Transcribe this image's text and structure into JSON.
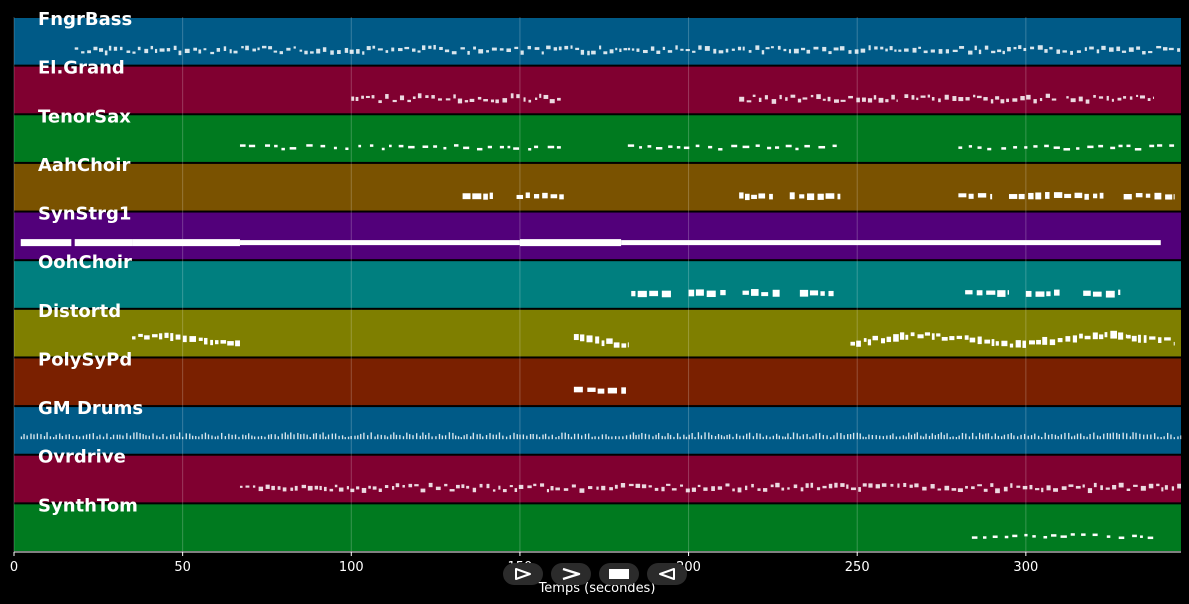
{
  "chart_data": {
    "type": "piano-roll",
    "xlabel": "Temps (secondes)",
    "xlim": [
      0,
      346
    ],
    "xticks": [
      0,
      50,
      100,
      150,
      200,
      250,
      300
    ],
    "grid": true,
    "tracks": [
      {
        "name": "FngrBass",
        "color": "#005a87",
        "style": "dense",
        "segments": [
          [
            18,
            165
          ],
          [
            165,
            182
          ],
          [
            182,
            346
          ]
        ]
      },
      {
        "name": "El.Grand",
        "color": "#800030",
        "style": "dense",
        "segments": [
          [
            100,
            163
          ],
          [
            215,
            262
          ],
          [
            264,
            295
          ],
          [
            296,
            310
          ],
          [
            312,
            338
          ]
        ]
      },
      {
        "name": "TenorSax",
        "color": "#007a1f",
        "style": "sparse",
        "segments": [
          [
            67,
            163
          ],
          [
            182,
            245
          ],
          [
            280,
            346
          ]
        ]
      },
      {
        "name": "AahChoir",
        "color": "#7a5200",
        "style": "blocks",
        "segments": [
          [
            133,
            142
          ],
          [
            149,
            163
          ],
          [
            215,
            225
          ],
          [
            230,
            245
          ],
          [
            280,
            290
          ],
          [
            295,
            323
          ],
          [
            329,
            344
          ]
        ]
      },
      {
        "name": "SynStrg1",
        "color": "#52007a",
        "style": "sustain",
        "segments": [
          [
            2,
            17
          ],
          [
            18,
            35
          ],
          [
            35,
            67
          ],
          [
            67,
            150
          ],
          [
            150,
            180
          ],
          [
            180,
            340
          ]
        ]
      },
      {
        "name": "OohChoir",
        "color": "#007f7f",
        "style": "blocks",
        "segments": [
          [
            183,
            195
          ],
          [
            200,
            211
          ],
          [
            216,
            227
          ],
          [
            233,
            243
          ],
          [
            282,
            295
          ],
          [
            300,
            310
          ],
          [
            317,
            328
          ]
        ]
      },
      {
        "name": "Distortd",
        "color": "#7f7f00",
        "style": "wavy",
        "segments": [
          [
            35,
            67
          ],
          [
            166,
            182
          ],
          [
            248,
            330
          ],
          [
            330,
            344
          ]
        ]
      },
      {
        "name": "PolySyPd",
        "color": "#7a2000",
        "style": "blocks",
        "segments": [
          [
            166,
            182
          ]
        ]
      },
      {
        "name": "GM Drums",
        "color": "#005a87",
        "style": "drums",
        "segments": [
          [
            2,
            346
          ]
        ]
      },
      {
        "name": "Ovrdrive",
        "color": "#800030",
        "style": "dense",
        "segments": [
          [
            67,
            346
          ]
        ]
      },
      {
        "name": "SynthTom",
        "color": "#007a1f",
        "style": "sparse",
        "segments": [
          [
            284,
            340
          ]
        ]
      }
    ]
  },
  "transport": {
    "buttons": [
      {
        "name": "play-icon",
        "color": "#ffffff"
      },
      {
        "name": "forward-icon",
        "color": "#ffffff"
      },
      {
        "name": "stop-icon",
        "color": "#ffffff"
      },
      {
        "name": "rewind-icon",
        "color": "#ffffff"
      }
    ]
  }
}
